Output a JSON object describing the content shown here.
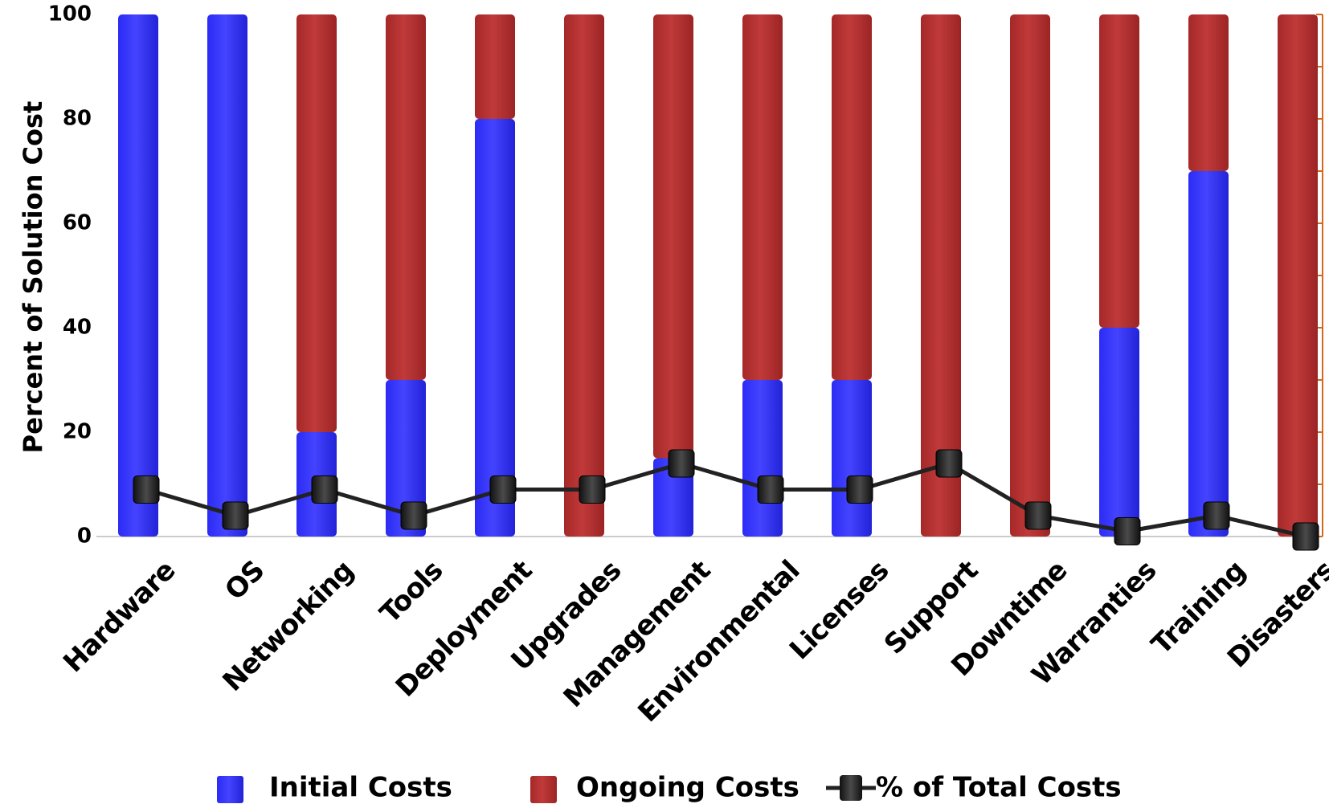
{
  "chart_data": {
    "type": "bar",
    "stacked": true,
    "categories": [
      "Hardware",
      "OS",
      "Networking",
      "Tools",
      "Deployment",
      "Upgrades",
      "Management",
      "Environmental",
      "Licenses",
      "Support",
      "Downtime",
      "Warranties",
      "Training",
      "Disasters"
    ],
    "series": [
      {
        "name": "Initial Costs",
        "kind": "bar",
        "color": "#3333ff",
        "values": [
          100,
          100,
          20,
          30,
          80,
          0,
          15,
          30,
          30,
          0,
          0,
          40,
          70,
          0
        ]
      },
      {
        "name": "Ongoing Costs",
        "kind": "bar",
        "color": "#b83232",
        "values": [
          0,
          0,
          80,
          70,
          20,
          100,
          85,
          70,
          70,
          100,
          100,
          60,
          30,
          100
        ]
      },
      {
        "name": "% of Total Costs",
        "kind": "line",
        "color": "#222222",
        "axis": "right",
        "values": [
          9,
          4,
          9,
          4,
          9,
          9,
          14,
          9,
          9,
          14,
          4,
          1,
          4,
          0
        ]
      }
    ],
    "ylabel": "Percent of Solution Cost",
    "ylim": [
      0,
      100
    ],
    "yticks": [
      "0",
      "20",
      "40",
      "60",
      "80",
      "100"
    ],
    "y2lim": [
      0,
      100
    ],
    "y2_ticks": 11,
    "y2_color": "#d2691e",
    "legend_position": "bottom",
    "grid": false
  }
}
